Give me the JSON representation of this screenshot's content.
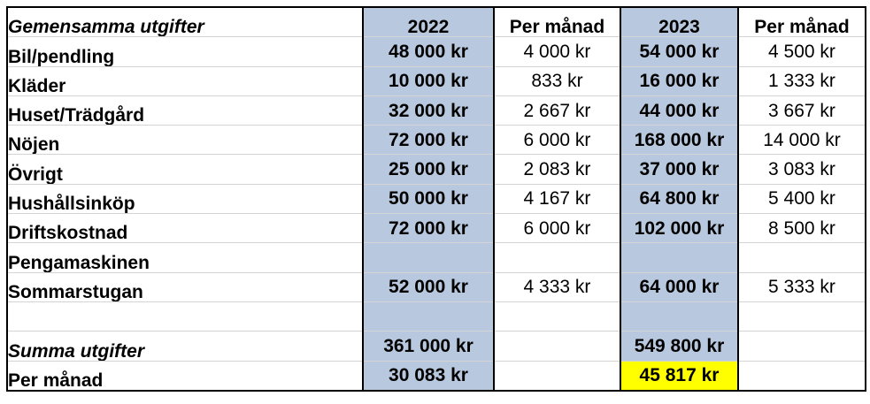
{
  "sheet": {
    "title": "Gemensamma utgifter",
    "headers": [
      "2022",
      "Per månad",
      "2023",
      "Per månad"
    ],
    "rows": [
      {
        "label": "Bil/pendling",
        "v2022": "48 000 kr",
        "m2022": "4 000 kr",
        "v2023": "54 000 kr",
        "m2023": "4 500 kr"
      },
      {
        "label": "Kläder",
        "v2022": "10 000 kr",
        "m2022": "833 kr",
        "v2023": "16 000 kr",
        "m2023": "1 333 kr"
      },
      {
        "label": "Huset/Trädgård",
        "v2022": "32 000 kr",
        "m2022": "2 667 kr",
        "v2023": "44 000 kr",
        "m2023": "3 667 kr"
      },
      {
        "label": "Nöjen",
        "v2022": "72 000 kr",
        "m2022": "6 000 kr",
        "v2023": "168 000 kr",
        "m2023": "14 000 kr"
      },
      {
        "label": "Övrigt",
        "v2022": "25 000 kr",
        "m2022": "2 083 kr",
        "v2023": "37 000 kr",
        "m2023": "3 083 kr"
      },
      {
        "label": "Hushållsinköp",
        "v2022": "50 000 kr",
        "m2022": "4 167 kr",
        "v2023": "64 800 kr",
        "m2023": "5 400 kr"
      },
      {
        "label": "Driftskostnad",
        "v2022": "72 000 kr",
        "m2022": "6 000 kr",
        "v2023": "102 000 kr",
        "m2023": "8 500 kr"
      },
      {
        "label": "Pengamaskinen",
        "v2022": "",
        "m2022": "",
        "v2023": "",
        "m2023": ""
      },
      {
        "label": "Sommarstugan",
        "v2022": "52 000 kr",
        "m2022": "4 333 kr",
        "v2023": "64 000 kr",
        "m2023": "5 333 kr"
      },
      {
        "label": "",
        "v2022": "",
        "m2022": "",
        "v2023": "",
        "m2023": ""
      }
    ],
    "total": {
      "label": "Summa utgifter",
      "v2022": "361 000 kr",
      "v2023": "549 800 kr"
    },
    "monthly": {
      "label": "Per månad",
      "v2022": "30 083 kr",
      "v2023": "45 817 kr"
    }
  },
  "colors": {
    "year_column": "#b8c8de",
    "highlight": "#ffff00"
  }
}
